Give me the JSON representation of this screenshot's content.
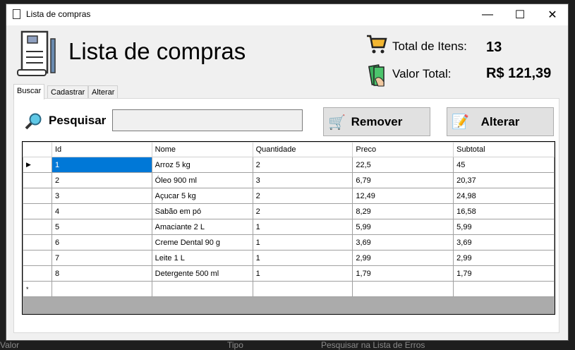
{
  "window": {
    "title": "Lista de compras",
    "minimize": "—",
    "maximize": "☐",
    "close": "✕"
  },
  "background": {
    "texts": [
      "Valor",
      "Tipo",
      "Pesquisar na Lista de Erros"
    ]
  },
  "header": {
    "title": "Lista de compras",
    "total_items_label": "Total de Itens:",
    "total_items_value": "13",
    "total_value_label": "Valor Total:",
    "total_value_value": "R$ 121,39"
  },
  "tabs": [
    {
      "label": "Buscar",
      "active": true
    },
    {
      "label": "Cadastrar"
    },
    {
      "label": "Alterar"
    }
  ],
  "search": {
    "label": "Pesquisar",
    "value": ""
  },
  "buttons": {
    "remove": "Remover",
    "edit": "Alterar"
  },
  "table": {
    "columns": [
      "Id",
      "Nome",
      "Quantidade",
      "Preco",
      "Subtotal"
    ],
    "rows": [
      [
        "1",
        "Arroz 5 kg",
        "2",
        "22,5",
        "45"
      ],
      [
        "2",
        "Óleo 900 ml",
        "3",
        "6,79",
        "20,37"
      ],
      [
        "3",
        "Açucar 5 kg",
        "2",
        "12,49",
        "24,98"
      ],
      [
        "4",
        "Sabão em pó",
        "2",
        "8,29",
        "16,58"
      ],
      [
        "5",
        "Amaciante 2 L",
        "1",
        "5,99",
        "5,99"
      ],
      [
        "6",
        "Creme Dental 90 g",
        "1",
        "3,69",
        "3,69"
      ],
      [
        "7",
        "Leite 1 L",
        "1",
        "2,99",
        "2,99"
      ],
      [
        "8",
        "Detergente 500 ml",
        "1",
        "1,79",
        "1,79"
      ]
    ],
    "current_row_marker": "▶",
    "new_row_marker": "*"
  }
}
